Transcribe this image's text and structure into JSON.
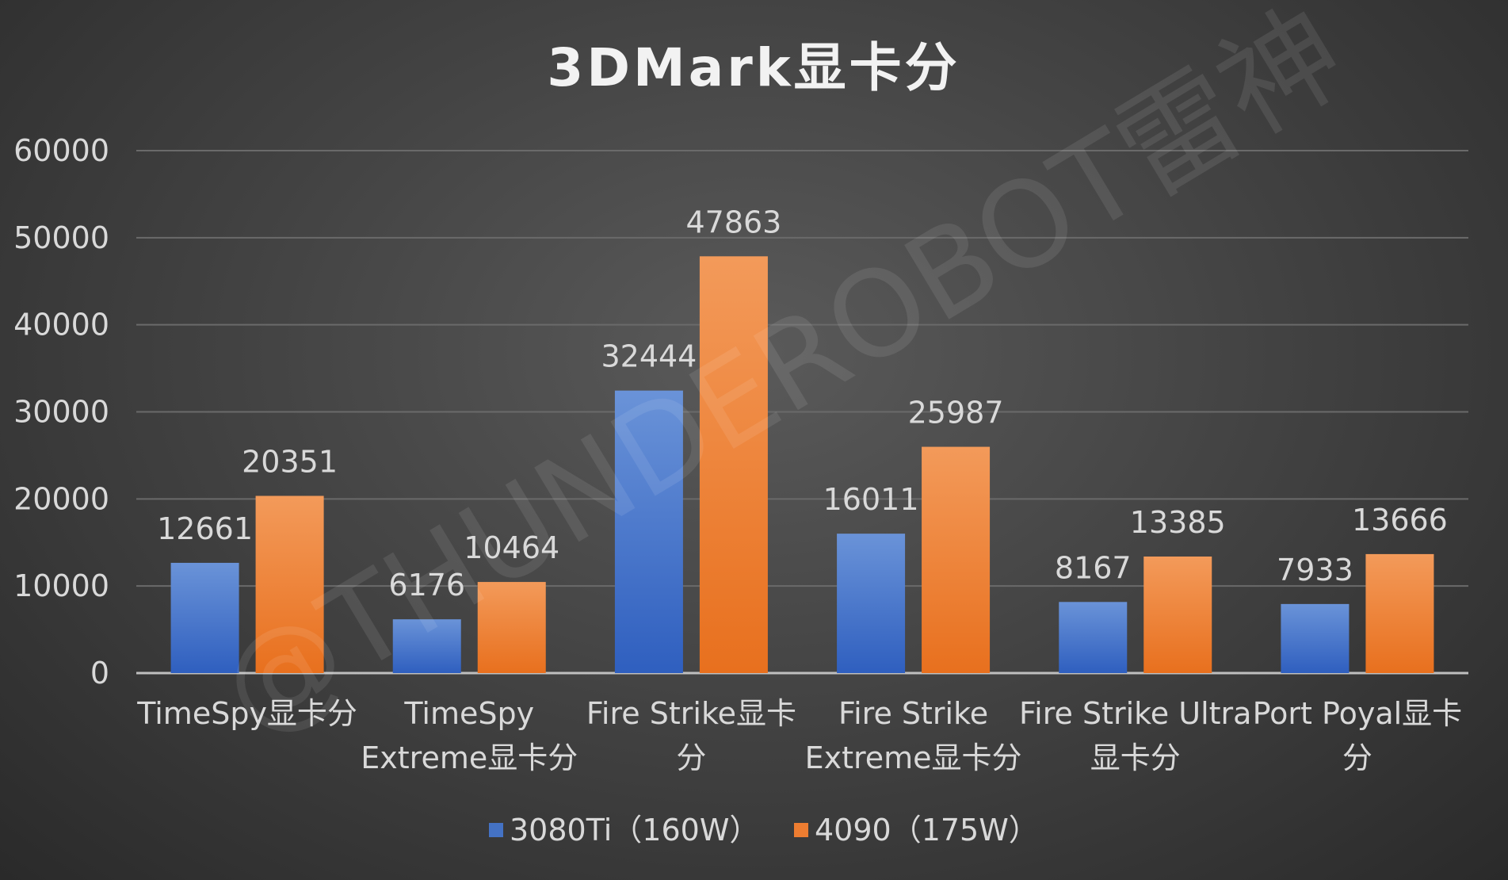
{
  "chart_data": {
    "type": "bar",
    "title": "3DMark显卡分",
    "categories": [
      [
        "TimeSpy显卡分"
      ],
      [
        "TimeSpy",
        "Extreme显卡分"
      ],
      [
        "Fire Strike显卡",
        "分"
      ],
      [
        "Fire Strike",
        "Extreme显卡分"
      ],
      [
        "Fire Strike Ultra",
        "显卡分"
      ],
      [
        "Port Poyal显卡",
        "分"
      ]
    ],
    "series": [
      {
        "name": "3080Ti（160W）",
        "color": "#4472c4",
        "values": [
          12661,
          6176,
          32444,
          16011,
          8167,
          7933
        ]
      },
      {
        "name": "4090（175W）",
        "color": "#ed7d31",
        "values": [
          20351,
          10464,
          47863,
          25987,
          13385,
          13666
        ]
      }
    ],
    "ylim": [
      0,
      60000
    ],
    "yticks": [
      0,
      10000,
      20000,
      30000,
      40000,
      50000,
      60000
    ],
    "grid": true,
    "legend_position": "bottom",
    "xlabel": "",
    "ylabel": ""
  },
  "watermark": "@THUNDEROBOT雷神"
}
